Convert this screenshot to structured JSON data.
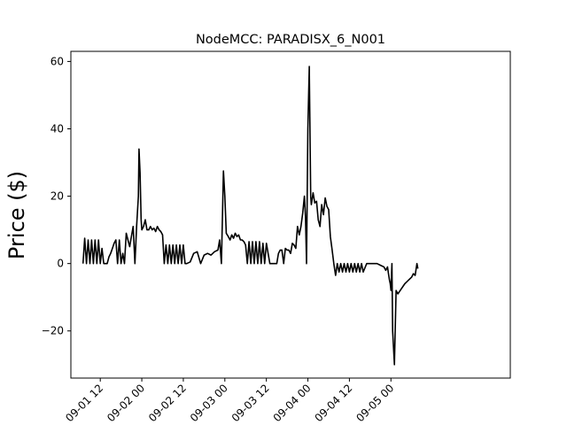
{
  "chart_data": {
    "type": "line",
    "title": "NodeMCC: PARADISX_6_N001",
    "xlabel": "",
    "ylabel": "Price ($)",
    "grid": false,
    "xlim": [
      -8.5,
      118.5
    ],
    "ylim": [
      -34,
      63
    ],
    "yticks": [
      {
        "value": -20,
        "label": "−20"
      },
      {
        "value": 0,
        "label": "0"
      },
      {
        "value": 20,
        "label": "20"
      },
      {
        "value": 40,
        "label": "40"
      },
      {
        "value": 60,
        "label": "60"
      }
    ],
    "xticks": [
      {
        "value": 0,
        "label": "09-01 12"
      },
      {
        "value": 12,
        "label": "09-02 00"
      },
      {
        "value": 24,
        "label": "09-02 12"
      },
      {
        "value": 36,
        "label": "09-03 00"
      },
      {
        "value": 48,
        "label": "09-03 12"
      },
      {
        "value": 60,
        "label": "09-04 00"
      },
      {
        "value": 72,
        "label": "09-04 12"
      },
      {
        "value": 84,
        "label": "09-05 00"
      }
    ],
    "x": [
      -5,
      -4.5,
      -4,
      -3.5,
      -3,
      -2.5,
      -2,
      -1.5,
      -1,
      -0.5,
      0,
      0.5,
      1,
      1.5,
      2,
      2.5,
      3,
      3.5,
      4,
      4.5,
      5,
      5.5,
      6,
      6.5,
      7,
      7.5,
      8,
      8.5,
      9,
      9.5,
      10,
      10.5,
      11,
      11.2,
      11.5,
      11.8,
      12,
      12.5,
      13,
      13.5,
      14,
      14.5,
      15,
      15.5,
      16,
      16.5,
      17,
      17.5,
      18,
      18.5,
      19,
      19.5,
      20,
      20.5,
      21,
      21.5,
      22,
      22.5,
      23,
      23.5,
      24,
      24.5,
      25,
      26,
      27,
      28,
      29,
      30,
      31,
      32,
      33,
      34,
      34.5,
      35,
      35.3,
      35.6,
      36,
      36.4,
      37,
      37.5,
      38,
      38.5,
      39,
      39.5,
      40,
      40.5,
      41,
      41.5,
      42,
      42.5,
      43,
      43.5,
      44,
      44.5,
      45,
      45.5,
      46,
      46.5,
      47,
      47.5,
      48,
      49,
      50,
      51,
      51.5,
      52,
      52.5,
      53,
      53.5,
      54,
      54.5,
      55,
      55.5,
      56,
      56.5,
      57,
      57.5,
      58,
      58.5,
      59,
      59.3,
      59.6,
      60,
      60.4,
      60.8,
      61,
      61.5,
      62,
      62.5,
      63,
      63.5,
      64,
      64.5,
      65,
      65.5,
      66,
      66.5,
      67,
      67.5,
      68,
      68.5,
      69,
      69.5,
      70,
      70.5,
      71,
      71.5,
      72,
      72.5,
      73,
      73.5,
      74,
      74.5,
      75,
      75.5,
      76,
      77,
      78,
      79,
      80,
      81,
      82,
      82.5,
      83,
      83.3,
      83.6,
      83.8,
      84,
      84.3,
      84.5,
      85,
      85.5,
      86,
      87,
      88,
      89,
      90,
      90.5,
      91,
      91.5,
      91.8
    ],
    "y": [
      0,
      7.5,
      0,
      7,
      0,
      7,
      0,
      7,
      0,
      7,
      0,
      4.5,
      0,
      0,
      0,
      2,
      3,
      4.5,
      6,
      7,
      0,
      7,
      0,
      3,
      0,
      9,
      7,
      5,
      8,
      11,
      0,
      11,
      20,
      34,
      27,
      13,
      10,
      11,
      13,
      10,
      10,
      11,
      10,
      10.5,
      9.5,
      11,
      10,
      9.5,
      8.5,
      0,
      5.5,
      0,
      5.5,
      0,
      5.5,
      0,
      5.5,
      0,
      5.5,
      0,
      5.5,
      0,
      0,
      0.5,
      3,
      3.5,
      0,
      2.5,
      3,
      2.5,
      3.5,
      4,
      7,
      0,
      14,
      27.5,
      20,
      9,
      8,
      7,
      8.5,
      7.5,
      9,
      8,
      8.5,
      7,
      7,
      6.5,
      5.5,
      0,
      6.5,
      0,
      6.5,
      0,
      6.5,
      0,
      6.5,
      0,
      6,
      0,
      6,
      0,
      0,
      0,
      3,
      4,
      4,
      0,
      4.5,
      4,
      4,
      3,
      6,
      5.5,
      4.5,
      11,
      8.5,
      11,
      15,
      20,
      14,
      0,
      40,
      58.5,
      20,
      17.5,
      21,
      18,
      18.5,
      13,
      11,
      17.5,
      14.5,
      19.5,
      17,
      16,
      8,
      4,
      0,
      -3.5,
      0,
      -2.5,
      0,
      -2.5,
      0,
      -2.5,
      0,
      -2.5,
      0,
      -2.5,
      0,
      -2.5,
      0,
      -2.5,
      0,
      -2.5,
      0,
      0,
      0,
      0,
      -0.5,
      -1,
      -2,
      -1,
      -3,
      -5,
      -6,
      -8,
      0,
      -20,
      -30,
      -8,
      -9,
      -7.5,
      -6,
      -5,
      -4,
      -3,
      -3.5,
      0,
      -1.5
    ]
  }
}
